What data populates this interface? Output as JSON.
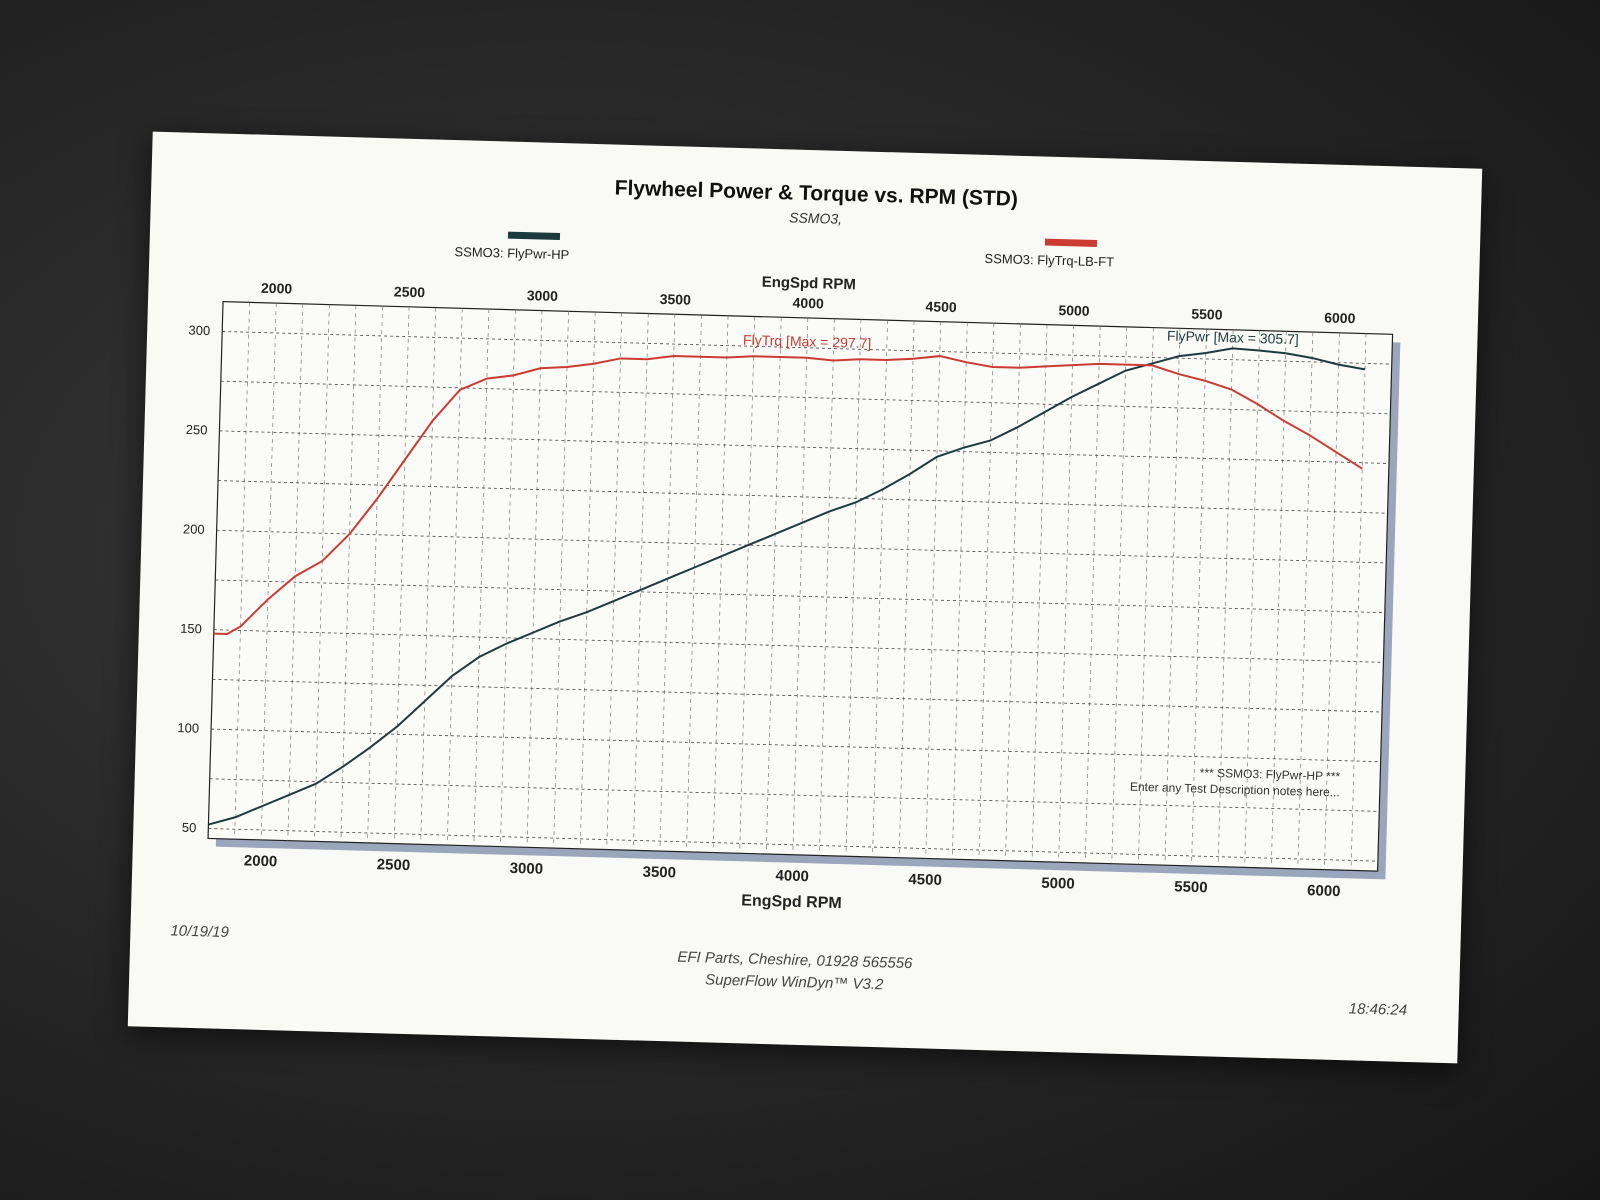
{
  "page": {
    "title": "Flywheel Power & Torque vs. RPM (STD)",
    "subtitle": "SSMO3,",
    "legend": [
      {
        "label": "SSMO3: FlyPwr-HP",
        "color": "#1d3b3f"
      },
      {
        "label": "SSMO3: FlyTrq-LB-FT",
        "color": "#cc3b32"
      }
    ],
    "date": "10/19/19",
    "time": "18:46:24",
    "footer_company": "EFI Parts, Cheshire, 01928 565556",
    "footer_software": "SuperFlow WinDyn™ V3.2",
    "note_line1": "*** SSMO3: FlyPwr-HP ***",
    "note_line2": "Enter any Test Description notes here..."
  },
  "chart_data": {
    "type": "line",
    "title": "Flywheel Power & Torque vs. RPM (STD)",
    "subtitle": "SSMO3,",
    "xlabel": "EngSpd RPM",
    "ylabel": "",
    "xlim": [
      1800,
      6200
    ],
    "ylim": [
      45,
      315
    ],
    "x_ticks": [
      2000,
      2500,
      3000,
      3500,
      4000,
      4500,
      5000,
      5500,
      6000
    ],
    "y_ticks": [
      50,
      100,
      150,
      200,
      250,
      300
    ],
    "grid": true,
    "legend_position": "top",
    "annotations": [
      {
        "text": "FlyTrq [Max = 297.7]",
        "x": 4000,
        "y": 297.7,
        "color": "#cc3b32"
      },
      {
        "text": "FlyPwr [Max = 305.7]",
        "x": 5600,
        "y": 305.7,
        "color": "#1d3b3f"
      }
    ],
    "series": [
      {
        "name": "SSMO3: FlyPwr-HP",
        "color": "#1d3b3f",
        "x": [
          1800,
          1900,
          2000,
          2100,
          2200,
          2300,
          2400,
          2500,
          2600,
          2700,
          2800,
          2900,
          3000,
          3100,
          3200,
          3300,
          3400,
          3500,
          3600,
          3700,
          3800,
          3900,
          4000,
          4100,
          4200,
          4300,
          4400,
          4500,
          4600,
          4700,
          4800,
          4900,
          5000,
          5100,
          5200,
          5300,
          5400,
          5500,
          5600,
          5700,
          5800,
          5900,
          6000,
          6100
        ],
        "y": [
          52,
          56,
          62,
          68,
          74,
          83,
          93,
          104,
          117,
          130,
          140,
          147,
          153,
          159,
          164,
          170,
          176,
          182,
          188,
          194,
          200,
          206,
          212,
          218,
          223,
          230,
          238,
          247,
          252,
          256,
          263,
          271,
          279,
          286,
          293,
          297,
          301,
          303,
          305.7,
          305,
          304,
          302,
          299,
          297
        ]
      },
      {
        "name": "SSMO3: FlyTrq-LB-FT",
        "color": "#cc3b32",
        "x": [
          1800,
          1850,
          1900,
          2000,
          2100,
          2200,
          2300,
          2400,
          2500,
          2600,
          2700,
          2800,
          2900,
          3000,
          3100,
          3200,
          3300,
          3400,
          3500,
          3600,
          3700,
          3800,
          3900,
          4000,
          4100,
          4200,
          4300,
          4400,
          4500,
          4600,
          4700,
          4800,
          4900,
          5000,
          5100,
          5200,
          5300,
          5400,
          5500,
          5600,
          5700,
          5800,
          5900,
          6000,
          6100
        ],
        "y": [
          148,
          148,
          152,
          166,
          178,
          186,
          200,
          218,
          238,
          258,
          274,
          280,
          282,
          286,
          287,
          289,
          292,
          292,
          294,
          294,
          294,
          295,
          295,
          295,
          294,
          295,
          295,
          296,
          297.7,
          295,
          293,
          293,
          294,
          295,
          296,
          296,
          296,
          292,
          289,
          285,
          278,
          270,
          263,
          255,
          247
        ]
      }
    ]
  }
}
